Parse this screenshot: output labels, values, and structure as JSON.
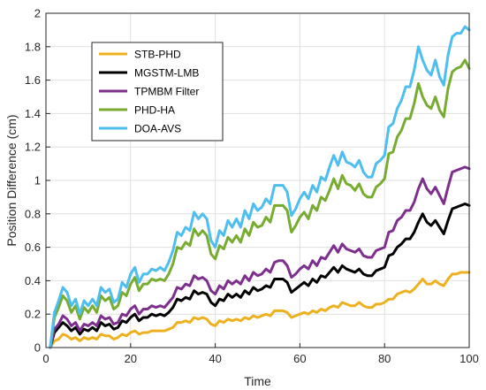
{
  "chart_data": {
    "type": "line",
    "xlabel": "Time",
    "ylabel": "Position Difference (cm)",
    "xlim": [
      0,
      100
    ],
    "ylim": [
      0,
      2
    ],
    "xticks": [
      "0",
      "20",
      "40",
      "60",
      "80",
      "100"
    ],
    "yticks": [
      "0",
      "0.2",
      "0.4",
      "0.6",
      "0.8",
      "1",
      "1.2",
      "1.4",
      "1.6",
      "1.8",
      "2"
    ],
    "grid": true,
    "legend_position": "top-left",
    "x": [
      1,
      2,
      3,
      4,
      5,
      6,
      7,
      8,
      9,
      10,
      11,
      12,
      13,
      14,
      15,
      16,
      17,
      18,
      19,
      20,
      21,
      22,
      23,
      24,
      25,
      26,
      27,
      28,
      29,
      30,
      31,
      32,
      33,
      34,
      35,
      36,
      37,
      38,
      39,
      40,
      41,
      42,
      43,
      44,
      45,
      46,
      47,
      48,
      49,
      50,
      51,
      52,
      53,
      54,
      55,
      56,
      57,
      58,
      59,
      60,
      61,
      62,
      63,
      64,
      65,
      66,
      67,
      68,
      69,
      70,
      71,
      72,
      73,
      74,
      75,
      76,
      77,
      78,
      79,
      80,
      81,
      82,
      83,
      84,
      85,
      86,
      87,
      88,
      89,
      90,
      91,
      92,
      93,
      94,
      95,
      96,
      97,
      98,
      99,
      100
    ],
    "series": [
      {
        "name": "STB-PHD",
        "color": "#EDB120",
        "values": [
          0,
          0.04,
          0.05,
          0.08,
          0.07,
          0.05,
          0.06,
          0.04,
          0.06,
          0.05,
          0.06,
          0.05,
          0.08,
          0.07,
          0.07,
          0.05,
          0.06,
          0.08,
          0.07,
          0.09,
          0.1,
          0.08,
          0.09,
          0.09,
          0.1,
          0.1,
          0.1,
          0.1,
          0.11,
          0.12,
          0.15,
          0.15,
          0.16,
          0.15,
          0.18,
          0.17,
          0.18,
          0.17,
          0.14,
          0.13,
          0.16,
          0.15,
          0.17,
          0.16,
          0.17,
          0.16,
          0.18,
          0.17,
          0.19,
          0.18,
          0.19,
          0.2,
          0.19,
          0.22,
          0.22,
          0.22,
          0.21,
          0.18,
          0.19,
          0.2,
          0.21,
          0.2,
          0.22,
          0.21,
          0.23,
          0.22,
          0.24,
          0.25,
          0.24,
          0.27,
          0.26,
          0.25,
          0.25,
          0.27,
          0.25,
          0.24,
          0.24,
          0.26,
          0.26,
          0.27,
          0.29,
          0.29,
          0.32,
          0.33,
          0.34,
          0.33,
          0.35,
          0.38,
          0.41,
          0.38,
          0.38,
          0.4,
          0.38,
          0.37,
          0.41,
          0.44,
          0.44,
          0.45,
          0.45,
          0.45
        ]
      },
      {
        "name": "MGSTM-LMB",
        "color": "#000000",
        "values": [
          0,
          0.09,
          0.12,
          0.15,
          0.13,
          0.1,
          0.12,
          0.08,
          0.11,
          0.1,
          0.12,
          0.1,
          0.15,
          0.13,
          0.14,
          0.11,
          0.12,
          0.16,
          0.15,
          0.18,
          0.2,
          0.16,
          0.18,
          0.18,
          0.2,
          0.19,
          0.2,
          0.19,
          0.21,
          0.24,
          0.29,
          0.28,
          0.3,
          0.29,
          0.34,
          0.32,
          0.33,
          0.32,
          0.27,
          0.25,
          0.29,
          0.28,
          0.32,
          0.3,
          0.32,
          0.3,
          0.34,
          0.32,
          0.36,
          0.34,
          0.35,
          0.37,
          0.36,
          0.41,
          0.41,
          0.41,
          0.39,
          0.33,
          0.35,
          0.37,
          0.39,
          0.37,
          0.41,
          0.39,
          0.43,
          0.42,
          0.45,
          0.48,
          0.45,
          0.49,
          0.47,
          0.46,
          0.45,
          0.47,
          0.44,
          0.43,
          0.43,
          0.46,
          0.47,
          0.48,
          0.55,
          0.56,
          0.6,
          0.62,
          0.65,
          0.65,
          0.69,
          0.75,
          0.8,
          0.75,
          0.73,
          0.76,
          0.72,
          0.68,
          0.76,
          0.83,
          0.84,
          0.85,
          0.86,
          0.85
        ]
      },
      {
        "name": "TPMBM Filter",
        "color": "#7E2F8E",
        "values": [
          0,
          0.11,
          0.14,
          0.19,
          0.17,
          0.13,
          0.15,
          0.1,
          0.14,
          0.13,
          0.15,
          0.13,
          0.19,
          0.17,
          0.18,
          0.14,
          0.15,
          0.2,
          0.19,
          0.23,
          0.25,
          0.2,
          0.23,
          0.23,
          0.25,
          0.24,
          0.25,
          0.24,
          0.27,
          0.3,
          0.36,
          0.35,
          0.38,
          0.37,
          0.43,
          0.41,
          0.42,
          0.4,
          0.34,
          0.32,
          0.37,
          0.35,
          0.4,
          0.38,
          0.4,
          0.38,
          0.43,
          0.4,
          0.45,
          0.43,
          0.44,
          0.47,
          0.45,
          0.51,
          0.52,
          0.52,
          0.49,
          0.42,
          0.44,
          0.47,
          0.49,
          0.47,
          0.52,
          0.49,
          0.54,
          0.53,
          0.57,
          0.61,
          0.57,
          0.62,
          0.59,
          0.58,
          0.57,
          0.59,
          0.55,
          0.54,
          0.54,
          0.58,
          0.59,
          0.6,
          0.69,
          0.7,
          0.76,
          0.78,
          0.82,
          0.82,
          0.87,
          0.95,
          1.01,
          0.95,
          0.92,
          0.96,
          0.91,
          0.86,
          0.96,
          1.05,
          1.06,
          1.07,
          1.08,
          1.07
        ]
      },
      {
        "name": "PHD-HA",
        "color": "#77AC30",
        "values": [
          0,
          0.18,
          0.24,
          0.31,
          0.28,
          0.21,
          0.25,
          0.17,
          0.24,
          0.21,
          0.25,
          0.21,
          0.31,
          0.28,
          0.3,
          0.23,
          0.25,
          0.33,
          0.31,
          0.38,
          0.42,
          0.34,
          0.38,
          0.38,
          0.41,
          0.4,
          0.41,
          0.4,
          0.44,
          0.5,
          0.6,
          0.59,
          0.63,
          0.61,
          0.71,
          0.67,
          0.7,
          0.67,
          0.56,
          0.53,
          0.61,
          0.59,
          0.66,
          0.63,
          0.67,
          0.63,
          0.71,
          0.67,
          0.75,
          0.72,
          0.73,
          0.78,
          0.75,
          0.85,
          0.85,
          0.85,
          0.82,
          0.69,
          0.73,
          0.78,
          0.81,
          0.77,
          0.85,
          0.82,
          0.9,
          0.88,
          0.94,
          1.01,
          0.95,
          1.03,
          0.98,
          0.97,
          0.94,
          0.98,
          0.92,
          0.9,
          0.9,
          0.96,
          0.98,
          1.01,
          1.16,
          1.17,
          1.26,
          1.3,
          1.37,
          1.37,
          1.46,
          1.58,
          1.5,
          1.45,
          1.43,
          1.5,
          1.42,
          1.38,
          1.55,
          1.65,
          1.67,
          1.68,
          1.72,
          1.67
        ]
      },
      {
        "name": "DOA-AVS",
        "color": "#4DBEEE",
        "values": [
          0,
          0.21,
          0.28,
          0.36,
          0.33,
          0.25,
          0.29,
          0.2,
          0.28,
          0.25,
          0.29,
          0.25,
          0.36,
          0.33,
          0.35,
          0.27,
          0.29,
          0.39,
          0.36,
          0.44,
          0.48,
          0.39,
          0.44,
          0.44,
          0.47,
          0.46,
          0.48,
          0.46,
          0.51,
          0.58,
          0.69,
          0.67,
          0.72,
          0.7,
          0.81,
          0.77,
          0.8,
          0.77,
          0.64,
          0.6,
          0.7,
          0.67,
          0.76,
          0.72,
          0.77,
          0.72,
          0.82,
          0.77,
          0.86,
          0.82,
          0.84,
          0.89,
          0.86,
          0.97,
          0.97,
          0.97,
          0.93,
          0.79,
          0.83,
          0.89,
          0.93,
          0.89,
          0.97,
          0.93,
          1.02,
          1.0,
          1.08,
          1.15,
          1.09,
          1.17,
          1.11,
          1.1,
          1.08,
          1.12,
          1.05,
          1.02,
          1.02,
          1.1,
          1.12,
          1.15,
          1.32,
          1.34,
          1.43,
          1.48,
          1.56,
          1.56,
          1.66,
          1.8,
          1.72,
          1.66,
          1.63,
          1.72,
          1.62,
          1.57,
          1.75,
          1.86,
          1.88,
          1.88,
          1.92,
          1.9
        ]
      }
    ]
  }
}
